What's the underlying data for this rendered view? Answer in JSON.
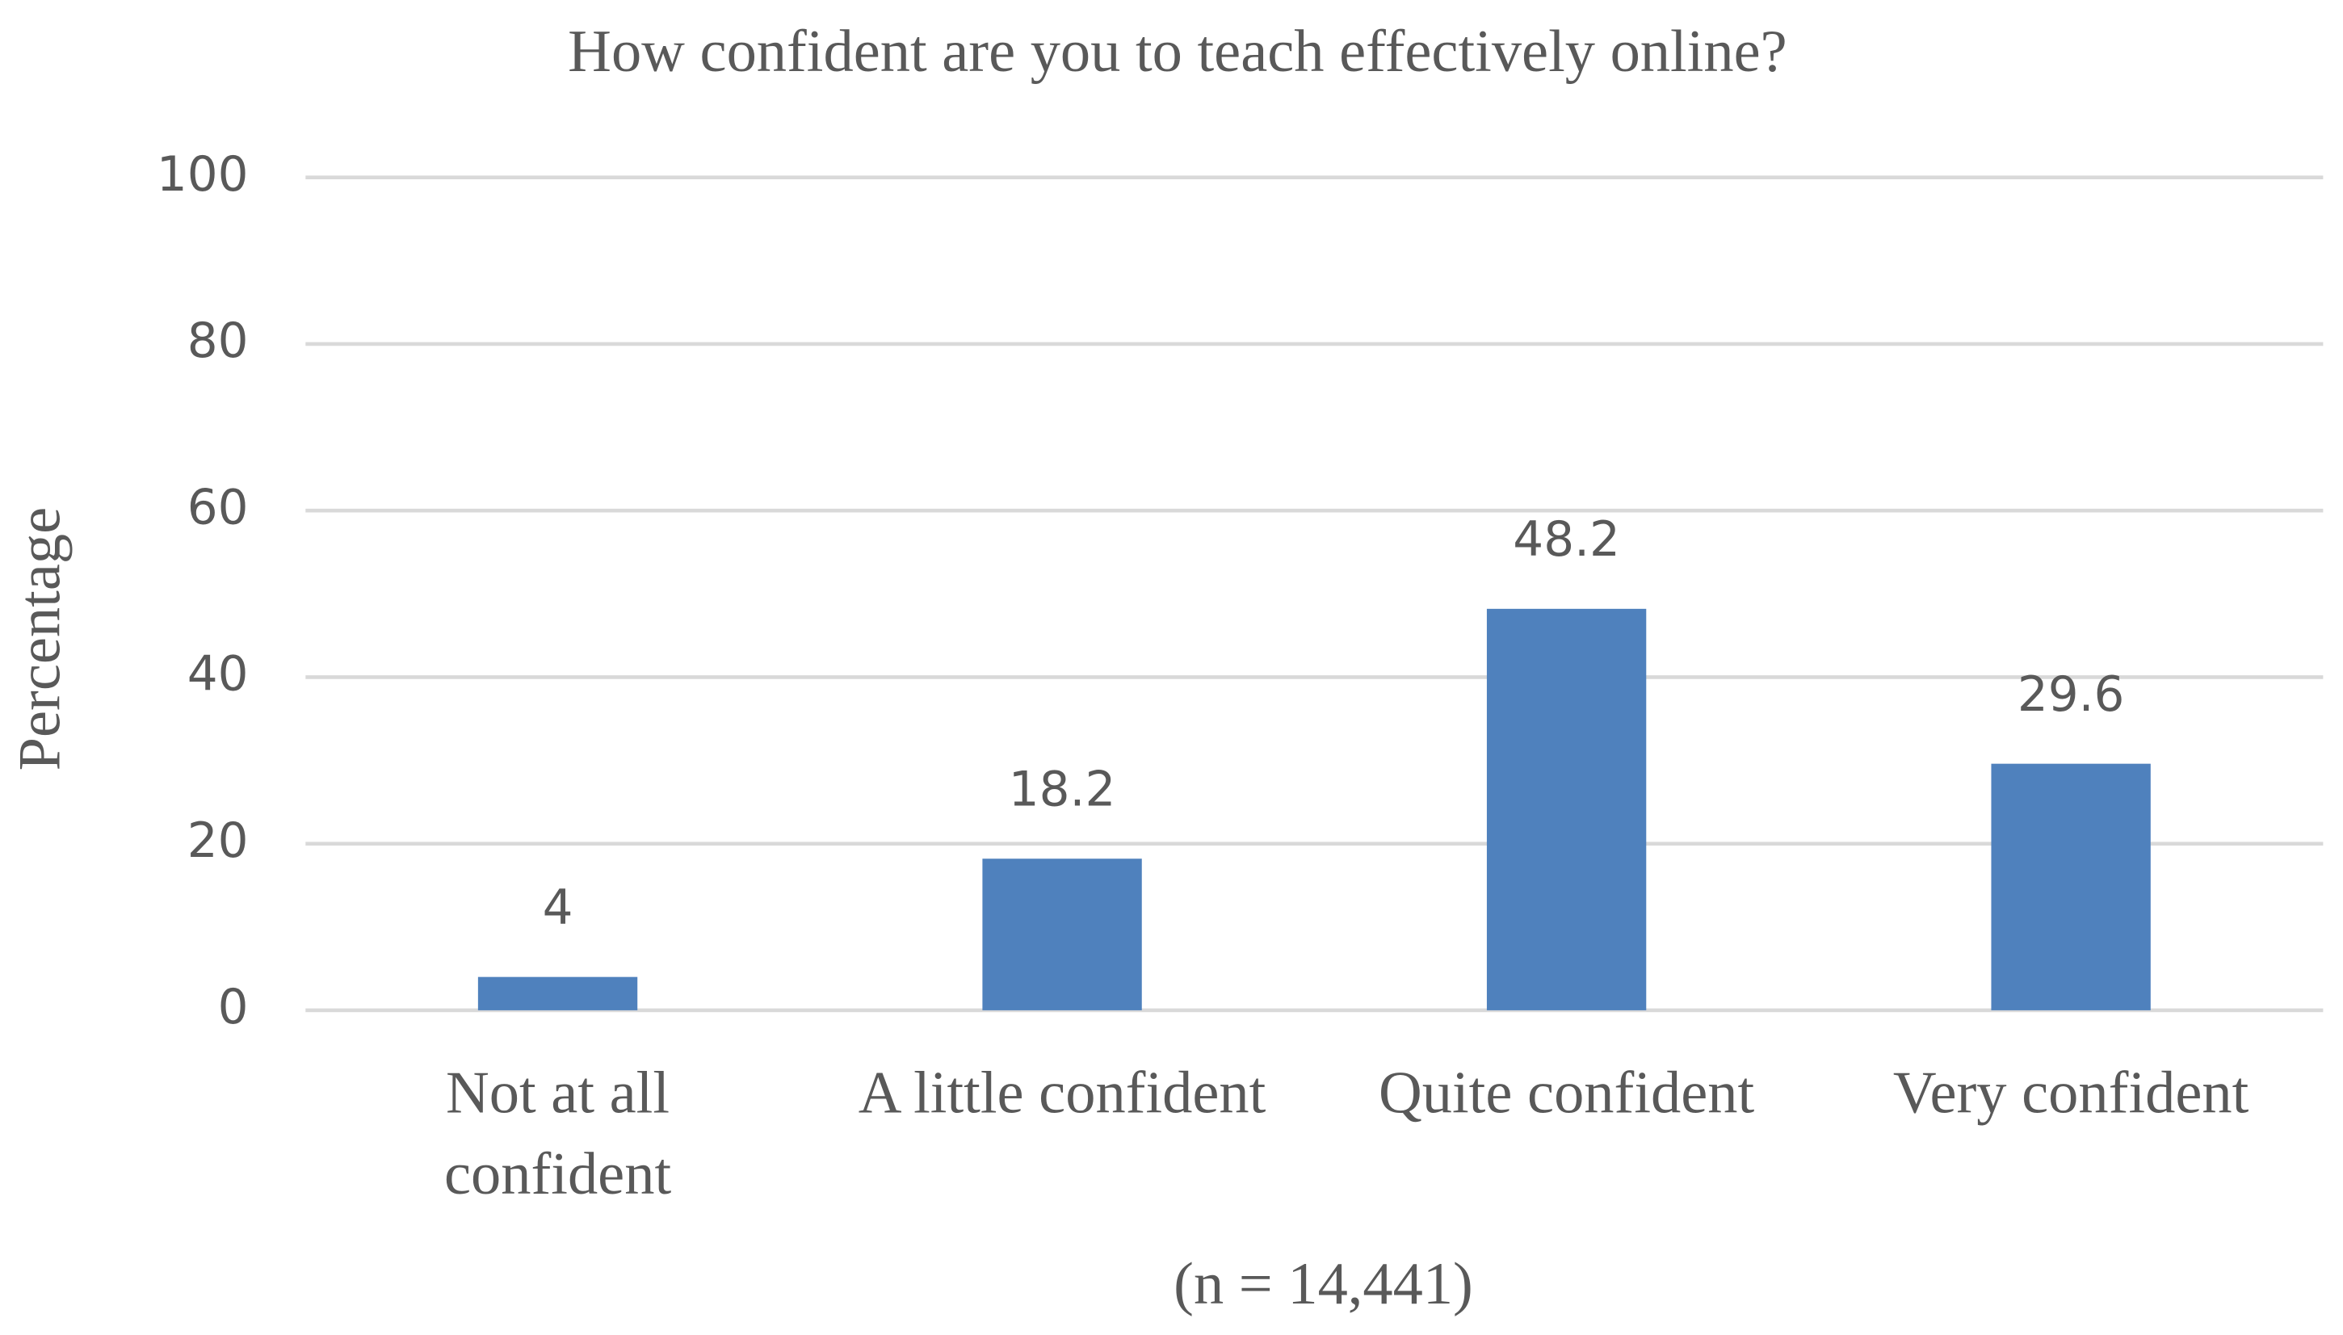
{
  "chart_data": {
    "type": "bar",
    "title": "How confident are you to teach effectively online?",
    "y_label": "Percentage",
    "x_label": "(n = 14,441)",
    "categories": [
      "Not at all confident",
      "A little confident",
      "Quite confident",
      "Very confident"
    ],
    "values": [
      4,
      18.2,
      48.2,
      29.6
    ],
    "color": "#4f81bd",
    "ylim": [
      0,
      100
    ],
    "yticks": [
      0,
      20,
      40,
      60,
      80,
      100
    ],
    "grid": true
  }
}
